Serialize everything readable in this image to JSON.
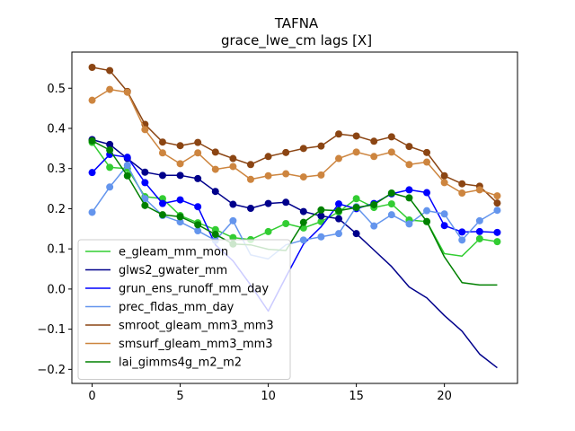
{
  "chart_data": {
    "type": "line",
    "title": "TAFNA",
    "subtitle": "grace_lwe_cm lags [X]",
    "xlabel": "",
    "ylabel": "",
    "xlim": [
      -1.15,
      24.15
    ],
    "ylim": [
      -0.235,
      0.59
    ],
    "xticks": [
      0,
      5,
      10,
      15,
      20
    ],
    "yticks": [
      -0.2,
      -0.1,
      0.0,
      0.1,
      0.2,
      0.3,
      0.4,
      0.5
    ],
    "ytick_labels": [
      "−0.2",
      "−0.1",
      "0.0",
      "0.1",
      "0.2",
      "0.3",
      "0.4",
      "0.5"
    ],
    "legend": "lower-left",
    "grid": false,
    "x": [
      0,
      1,
      2,
      3,
      4,
      5,
      6,
      7,
      8,
      9,
      10,
      11,
      12,
      13,
      14,
      15,
      16,
      17,
      18,
      19,
      20,
      21,
      22,
      23
    ],
    "series": [
      {
        "name": "e_gleam_mm_mon",
        "color": "#32cd32",
        "values": [
          0.365,
          0.303,
          0.3,
          0.23,
          0.225,
          0.183,
          0.165,
          0.148,
          0.128,
          0.123,
          0.143,
          0.163,
          0.152,
          0.168,
          0.192,
          0.225,
          0.203,
          0.212,
          0.172,
          0.168,
          0.088,
          0.082,
          0.125,
          0.118
        ],
        "markers": [
          true,
          true,
          true,
          true,
          true,
          true,
          true,
          true,
          true,
          true,
          true,
          true,
          true,
          true,
          true,
          true,
          true,
          true,
          true,
          true,
          false,
          false,
          true,
          true
        ]
      },
      {
        "name": "glws2_gwater_mm",
        "color": "#00008b",
        "values": [
          0.372,
          0.36,
          0.325,
          0.291,
          0.283,
          0.283,
          0.275,
          0.243,
          0.211,
          0.201,
          0.213,
          0.216,
          0.193,
          0.182,
          0.175,
          0.138,
          0.097,
          0.056,
          0.005,
          -0.022,
          -0.066,
          -0.105,
          -0.162,
          -0.196
        ],
        "markers": [
          true,
          true,
          true,
          true,
          true,
          true,
          true,
          true,
          true,
          true,
          true,
          true,
          true,
          true,
          true,
          true,
          false,
          false,
          false,
          false,
          false,
          false,
          false,
          false
        ]
      },
      {
        "name": "grun_ens_runoff_mm_day",
        "color": "#0000ff",
        "values": [
          0.29,
          0.335,
          0.328,
          0.265,
          0.213,
          0.222,
          0.205,
          0.11,
          0.07,
          0.01,
          -0.055,
          0.03,
          0.112,
          0.155,
          0.212,
          0.2,
          0.213,
          0.237,
          0.247,
          0.24,
          0.158,
          0.142,
          0.143,
          0.141
        ],
        "markers": [
          true,
          true,
          true,
          true,
          true,
          true,
          true,
          false,
          false,
          false,
          false,
          false,
          false,
          false,
          true,
          true,
          true,
          true,
          true,
          true,
          true,
          true,
          true,
          true
        ]
      },
      {
        "name": "prec_fldas_mm_day",
        "color": "#6495ed",
        "values": [
          0.191,
          0.254,
          0.308,
          0.225,
          0.183,
          0.167,
          0.145,
          0.121,
          0.17,
          0.085,
          0.075,
          0.11,
          0.122,
          0.13,
          0.138,
          0.205,
          0.157,
          0.185,
          0.162,
          0.195,
          0.187,
          0.122,
          0.17,
          0.196
        ],
        "markers": [
          true,
          true,
          true,
          true,
          true,
          true,
          true,
          true,
          true,
          false,
          false,
          false,
          true,
          true,
          true,
          true,
          true,
          true,
          true,
          true,
          true,
          true,
          true,
          true
        ]
      },
      {
        "name": "smroot_gleam_mm3_mm3",
        "color": "#8b4513",
        "values": [
          0.552,
          0.544,
          0.492,
          0.41,
          0.366,
          0.357,
          0.365,
          0.341,
          0.325,
          0.31,
          0.33,
          0.34,
          0.35,
          0.356,
          0.386,
          0.381,
          0.368,
          0.379,
          0.355,
          0.34,
          0.282,
          0.262,
          0.256,
          0.214
        ],
        "markers": [
          true,
          true,
          true,
          true,
          true,
          true,
          true,
          true,
          true,
          true,
          true,
          true,
          true,
          true,
          true,
          true,
          true,
          true,
          true,
          true,
          true,
          true,
          true,
          true
        ]
      },
      {
        "name": "smsurf_gleam_mm3_mm3",
        "color": "#cd853f",
        "values": [
          0.47,
          0.497,
          0.49,
          0.397,
          0.339,
          0.312,
          0.339,
          0.298,
          0.305,
          0.273,
          0.282,
          0.287,
          0.279,
          0.284,
          0.325,
          0.341,
          0.33,
          0.341,
          0.31,
          0.316,
          0.265,
          0.239,
          0.247,
          0.232
        ],
        "markers": [
          true,
          true,
          true,
          true,
          true,
          true,
          true,
          true,
          true,
          true,
          true,
          true,
          true,
          true,
          true,
          true,
          true,
          true,
          true,
          true,
          true,
          true,
          true,
          true
        ]
      },
      {
        "name": "lai_gimms4g_m2_m2",
        "color": "#008000",
        "values": [
          0.369,
          0.346,
          0.282,
          0.208,
          0.185,
          0.18,
          0.16,
          0.136,
          0.112,
          0.11,
          0.099,
          0.096,
          0.166,
          0.197,
          0.195,
          0.203,
          0.21,
          0.239,
          0.227,
          0.168,
          0.08,
          0.016,
          0.01,
          0.01
        ],
        "markers": [
          true,
          true,
          true,
          true,
          true,
          true,
          true,
          true,
          true,
          false,
          false,
          false,
          true,
          true,
          true,
          true,
          true,
          true,
          true,
          true,
          false,
          false,
          false,
          false
        ]
      }
    ]
  }
}
